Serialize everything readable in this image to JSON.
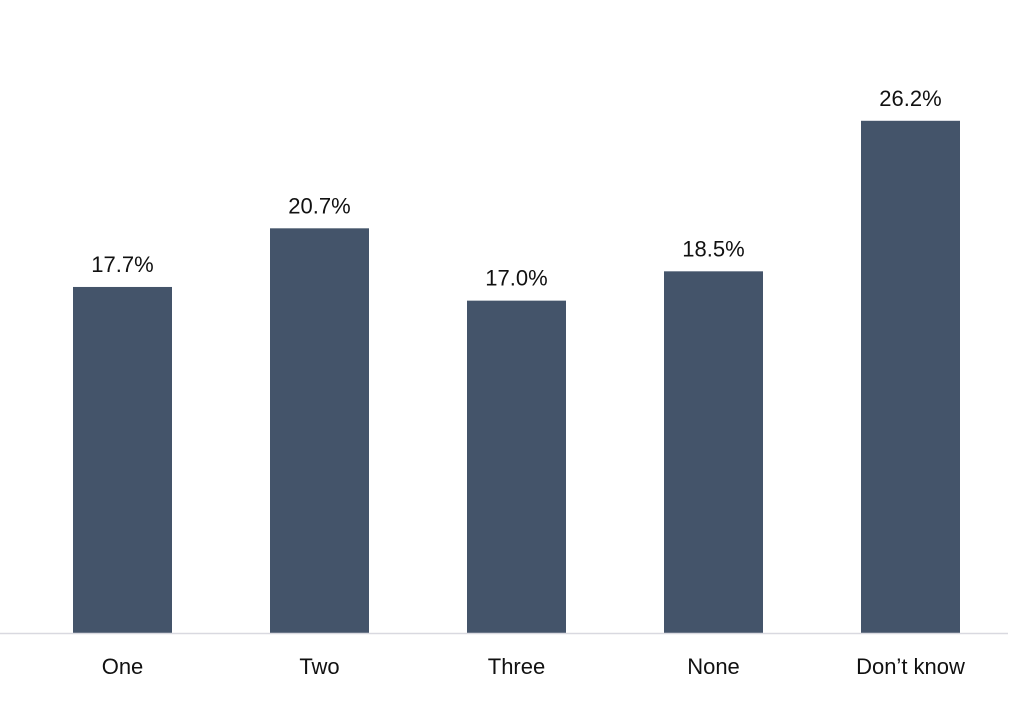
{
  "chart_data": {
    "type": "bar",
    "title": "",
    "xlabel": "",
    "ylabel": "",
    "categories": [
      "One",
      "Two",
      "Three",
      "None",
      "Don’t know"
    ],
    "values": [
      17.7,
      20.7,
      17.0,
      18.5,
      26.2
    ],
    "value_labels": [
      "17.7%",
      "20.7%",
      "17.0%",
      "18.5%",
      "26.2%"
    ],
    "ylim": [
      0,
      30
    ],
    "grid": false,
    "legend": "none",
    "colors": {
      "bar": "#44546a",
      "axis": "#d9d9e0",
      "text": "#111111",
      "background": "#ffffff"
    }
  }
}
